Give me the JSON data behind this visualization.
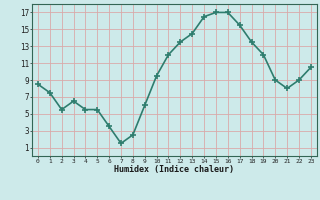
{
  "x": [
    0,
    1,
    2,
    3,
    4,
    5,
    6,
    7,
    8,
    9,
    10,
    11,
    12,
    13,
    14,
    15,
    16,
    17,
    18,
    19,
    20,
    21,
    22,
    23
  ],
  "y": [
    8.5,
    7.5,
    5.5,
    6.5,
    5.5,
    5.5,
    3.5,
    1.5,
    2.5,
    6.0,
    9.5,
    12.0,
    13.5,
    14.5,
    16.5,
    17.0,
    17.0,
    15.5,
    13.5,
    12.0,
    9.0,
    8.0,
    9.0,
    10.5
  ],
  "xlabel": "Humidex (Indice chaleur)",
  "ylim": [
    0,
    18
  ],
  "xlim": [
    -0.5,
    23.5
  ],
  "yticks": [
    1,
    3,
    5,
    7,
    9,
    11,
    13,
    15,
    17
  ],
  "xticks": [
    0,
    1,
    2,
    3,
    4,
    5,
    6,
    7,
    8,
    9,
    10,
    11,
    12,
    13,
    14,
    15,
    16,
    17,
    18,
    19,
    20,
    21,
    22,
    23
  ],
  "line_color": "#2e7d6e",
  "marker": "+",
  "bg_color": "#cdeaea",
  "grid_color": "#d9aaaa",
  "line_width": 1.2,
  "marker_size": 5,
  "marker_edge_width": 1.2
}
